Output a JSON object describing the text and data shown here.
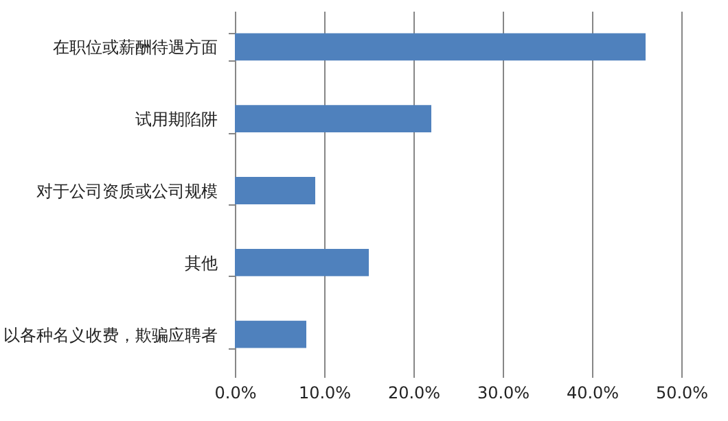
{
  "chart_data": {
    "type": "bar",
    "orientation": "horizontal",
    "categories": [
      "在职位或薪酬待遇方面",
      "试用期陷阱",
      "对于公司资质或公司规模",
      "其他",
      "以各种名义收费，欺骗应聘者"
    ],
    "values": [
      46,
      22,
      9,
      15,
      8
    ],
    "color": "#4f81bd",
    "xlim": [
      0,
      50
    ],
    "xticks": [
      {
        "value": 0,
        "label": "0.0%"
      },
      {
        "value": 10,
        "label": "10.0%"
      },
      {
        "value": 20,
        "label": "20.0%"
      },
      {
        "value": 30,
        "label": "30.0%"
      },
      {
        "value": 40,
        "label": "40.0%"
      },
      {
        "value": 50,
        "label": "50.0%"
      }
    ],
    "grid": "x"
  }
}
